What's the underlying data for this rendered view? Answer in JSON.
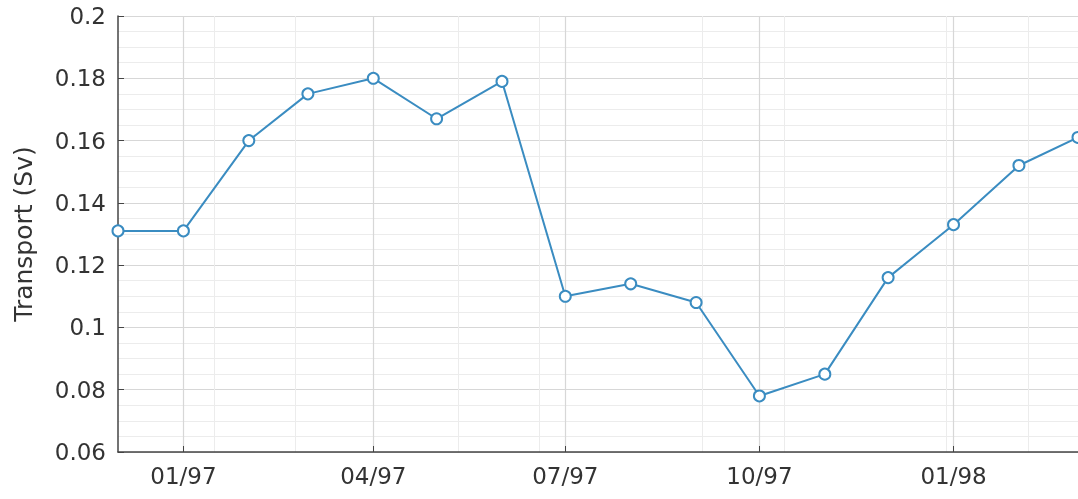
{
  "chart_data": {
    "type": "line",
    "ylabel": "Transport (Sv)",
    "x": [
      "1996-12",
      "1997-01",
      "1997-02",
      "1997-03",
      "1997-04",
      "1997-05",
      "1997-06",
      "1997-07",
      "1997-08",
      "1997-09",
      "1997-10",
      "1997-11",
      "1997-12",
      "1998-01",
      "1998-02",
      "1998-03"
    ],
    "series": [
      {
        "color": "#3a8cc1",
        "values": [
          0.131,
          0.131,
          0.16,
          0.175,
          0.18,
          0.167,
          0.179,
          0.11,
          0.114,
          0.108,
          0.078,
          0.085,
          0.116,
          0.133,
          0.152,
          0.161
        ]
      }
    ],
    "xlim": [
      "1996-12",
      "1998-03"
    ],
    "xticks": [
      {
        "value": "1997-01",
        "label": "01/97"
      },
      {
        "value": "1997-04",
        "label": "04/97"
      },
      {
        "value": "1997-07",
        "label": "07/97"
      },
      {
        "value": "1997-10",
        "label": "10/97"
      },
      {
        "value": "1998-01",
        "label": "01/98"
      }
    ],
    "ylim": [
      0.06,
      0.2
    ],
    "yticks": [
      0.06,
      0.08,
      0.1,
      0.12,
      0.14,
      0.16,
      0.18,
      0.2
    ],
    "grid": true,
    "marker": "circle",
    "line_style": "solid"
  }
}
